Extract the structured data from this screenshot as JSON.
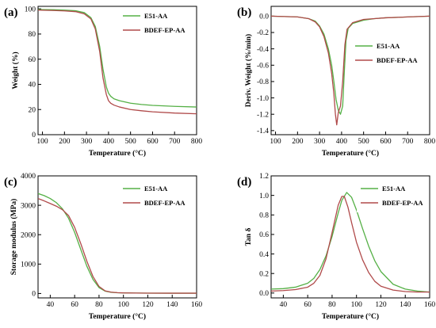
{
  "colors": {
    "e51": "#55b046",
    "bdef": "#b04a4a"
  },
  "chart_data": [
    {
      "panel": "(a)",
      "type": "line",
      "xlabel": "Temperature (°C)",
      "ylabel": "Weight (%)",
      "xlim": [
        80,
        800
      ],
      "ylim": [
        0,
        102
      ],
      "xticks": [
        100,
        200,
        300,
        400,
        500,
        600,
        700,
        800
      ],
      "yticks": [
        0,
        20,
        40,
        60,
        80,
        100
      ],
      "legend_position": "top-right",
      "series": [
        {
          "name": "E51-AA",
          "color": "#55b046",
          "x": [
            80,
            150,
            200,
            250,
            290,
            320,
            340,
            360,
            375,
            390,
            400,
            410,
            425,
            450,
            500,
            550,
            600,
            700,
            800
          ],
          "y": [
            99.5,
            99.3,
            99.0,
            98.5,
            97.0,
            93.0,
            86.0,
            70.0,
            52.0,
            38.0,
            33.0,
            30.5,
            28.5,
            27.0,
            25.0,
            24.0,
            23.3,
            22.5,
            22.0
          ]
        },
        {
          "name": "BDEF-EP-AA",
          "color": "#b04a4a",
          "x": [
            80,
            150,
            200,
            250,
            290,
            320,
            340,
            360,
            375,
            390,
            400,
            410,
            425,
            450,
            500,
            550,
            600,
            700,
            800
          ],
          "y": [
            99.0,
            98.7,
            98.4,
            97.8,
            96.0,
            92.0,
            84.0,
            66.0,
            45.0,
            32.0,
            27.0,
            25.0,
            23.5,
            22.0,
            20.0,
            19.0,
            18.2,
            17.2,
            16.6
          ]
        }
      ]
    },
    {
      "panel": "(b)",
      "type": "line",
      "xlabel": "Temperature (°C)",
      "ylabel": "Deriv. Weight (%/min)",
      "xlim": [
        80,
        800
      ],
      "ylim": [
        -1.45,
        0.12
      ],
      "xticks": [
        100,
        200,
        300,
        400,
        500,
        600,
        700,
        800
      ],
      "yticks": [
        0.0,
        -0.2,
        -0.4,
        -0.6,
        -0.8,
        -1.0,
        -1.2,
        -1.4
      ],
      "legend_position": "right",
      "series": [
        {
          "name": "E51-AA",
          "color": "#55b046",
          "x": [
            80,
            200,
            250,
            280,
            300,
            320,
            340,
            355,
            365,
            375,
            385,
            395,
            405,
            412,
            420,
            430,
            450,
            500,
            550,
            600,
            700,
            800
          ],
          "y": [
            0.0,
            -0.01,
            -0.03,
            -0.06,
            -0.12,
            -0.22,
            -0.4,
            -0.6,
            -0.8,
            -1.02,
            -1.15,
            -1.2,
            -1.1,
            -0.7,
            -0.3,
            -0.15,
            -0.09,
            -0.05,
            -0.03,
            -0.02,
            -0.01,
            0.0
          ]
        },
        {
          "name": "BDEF-EP-AA",
          "color": "#b04a4a",
          "x": [
            80,
            200,
            250,
            280,
            300,
            320,
            340,
            355,
            365,
            372,
            378,
            385,
            395,
            405,
            415,
            425,
            450,
            500,
            550,
            600,
            700,
            800
          ],
          "y": [
            0.0,
            -0.01,
            -0.03,
            -0.07,
            -0.13,
            -0.25,
            -0.45,
            -0.7,
            -0.95,
            -1.2,
            -1.33,
            -1.18,
            -1.1,
            -0.8,
            -0.35,
            -0.16,
            -0.08,
            -0.04,
            -0.03,
            -0.02,
            -0.01,
            0.0
          ]
        }
      ]
    },
    {
      "panel": "(c)",
      "type": "line",
      "xlabel": "Temperature (°C)",
      "ylabel": "Storage modulus (MPa)",
      "xlim": [
        30,
        160
      ],
      "ylim": [
        -150,
        4000
      ],
      "xticks": [
        40,
        60,
        80,
        100,
        120,
        140,
        160
      ],
      "yticks": [
        0,
        1000,
        2000,
        3000,
        4000
      ],
      "legend_position": "top-right",
      "series": [
        {
          "name": "E51-AA",
          "color": "#55b046",
          "x": [
            30,
            35,
            40,
            45,
            50,
            55,
            60,
            65,
            70,
            75,
            80,
            85,
            90,
            95,
            100,
            110,
            120,
            140,
            160
          ],
          "y": [
            3400,
            3330,
            3230,
            3090,
            2880,
            2560,
            2080,
            1500,
            930,
            480,
            200,
            80,
            40,
            25,
            20,
            15,
            12,
            10,
            10
          ]
        },
        {
          "name": "BDEF-EP-AA",
          "color": "#b04a4a",
          "x": [
            30,
            35,
            40,
            45,
            50,
            55,
            60,
            65,
            70,
            75,
            80,
            85,
            90,
            95,
            100,
            110,
            120,
            140,
            160
          ],
          "y": [
            3230,
            3150,
            3060,
            2970,
            2850,
            2650,
            2250,
            1700,
            1100,
            580,
            240,
            90,
            45,
            28,
            20,
            15,
            12,
            10,
            10
          ]
        }
      ]
    },
    {
      "panel": "(d)",
      "type": "line",
      "xlabel": "Temperature (°C)",
      "ylabel": "Tan δ",
      "xlim": [
        30,
        160
      ],
      "ylim": [
        -0.05,
        1.2
      ],
      "xticks": [
        40,
        60,
        80,
        100,
        120,
        140,
        160
      ],
      "yticks": [
        0.0,
        0.2,
        0.4,
        0.6,
        0.8,
        1.0,
        1.2
      ],
      "legend_position": "top-right",
      "series": [
        {
          "name": "E51-AA",
          "color": "#55b046",
          "x": [
            30,
            40,
            50,
            60,
            65,
            70,
            75,
            80,
            85,
            88,
            92,
            96,
            100,
            105,
            110,
            115,
            120,
            130,
            140,
            150,
            160
          ],
          "y": [
            0.04,
            0.045,
            0.06,
            0.1,
            0.15,
            0.24,
            0.38,
            0.58,
            0.82,
            0.95,
            1.03,
            0.98,
            0.85,
            0.66,
            0.48,
            0.33,
            0.22,
            0.09,
            0.04,
            0.02,
            0.01
          ]
        },
        {
          "name": "BDEF-EP-AA",
          "color": "#b04a4a",
          "x": [
            30,
            40,
            50,
            60,
            65,
            70,
            75,
            80,
            85,
            88,
            90,
            93,
            96,
            100,
            105,
            110,
            115,
            120,
            130,
            140,
            150,
            160
          ],
          "y": [
            0.02,
            0.025,
            0.035,
            0.06,
            0.1,
            0.18,
            0.35,
            0.62,
            0.9,
            0.99,
            0.99,
            0.88,
            0.72,
            0.52,
            0.34,
            0.21,
            0.12,
            0.07,
            0.03,
            0.015,
            0.01,
            0.01
          ]
        }
      ]
    }
  ]
}
